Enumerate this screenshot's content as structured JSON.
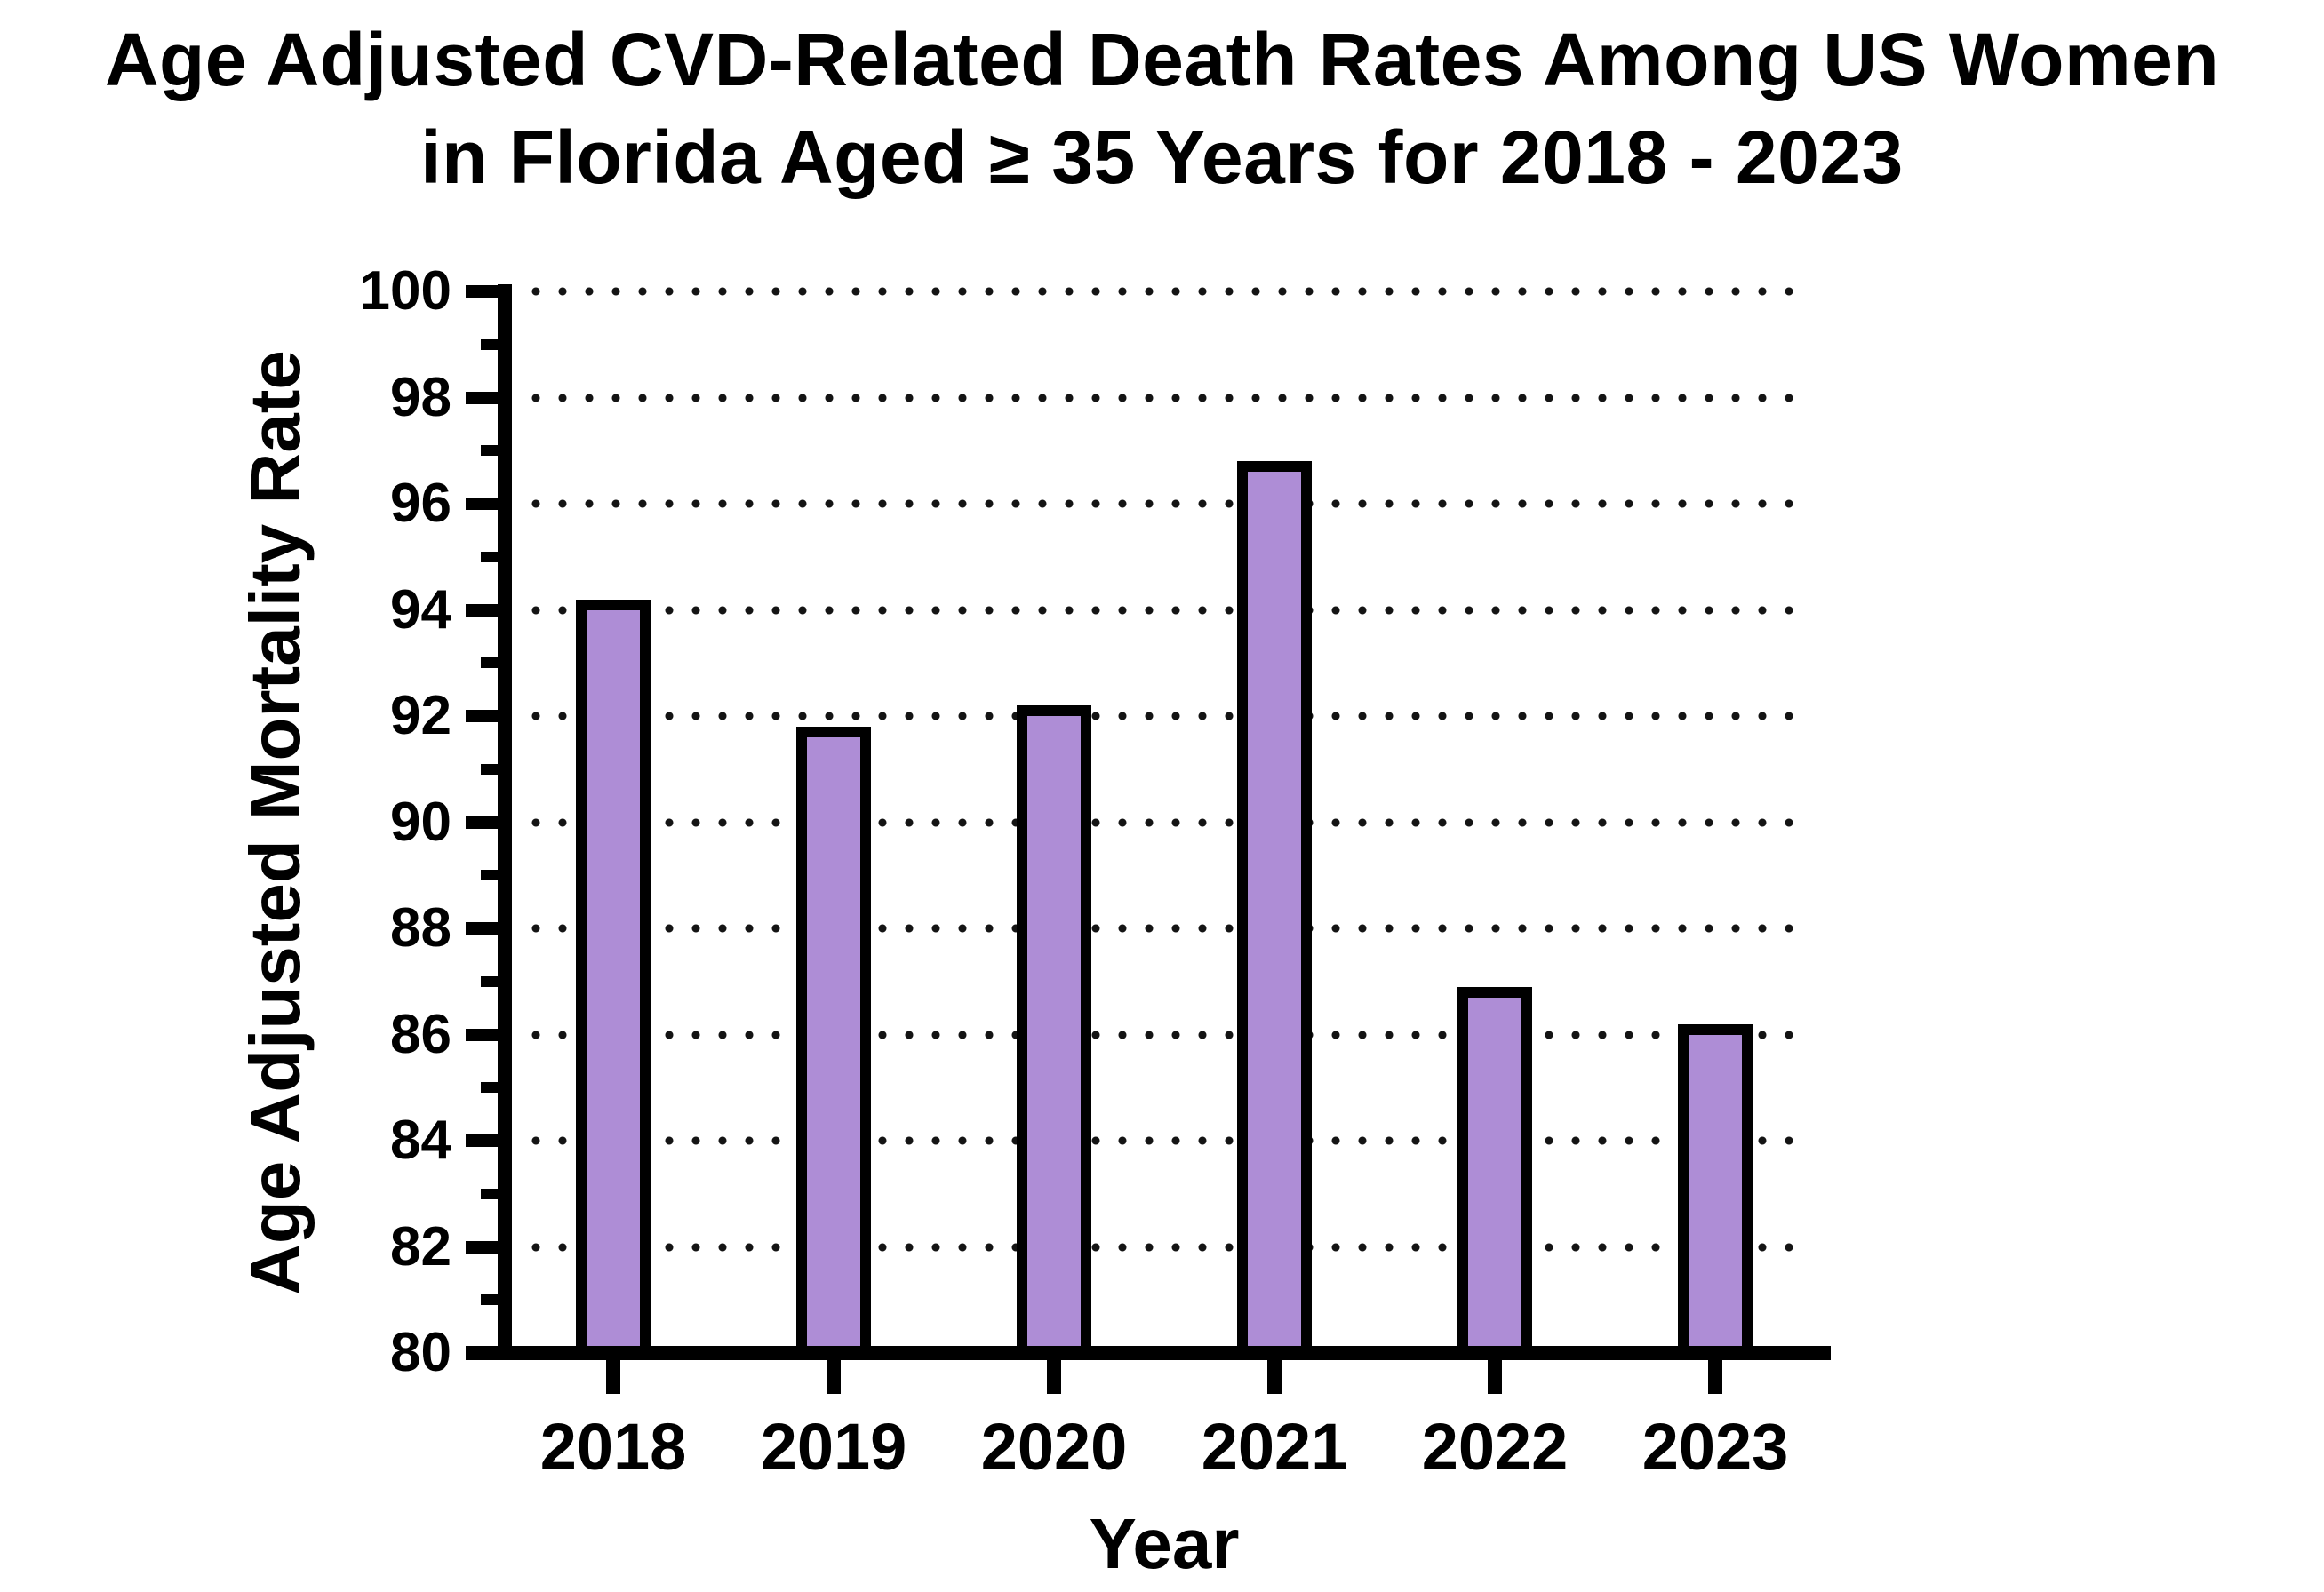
{
  "title": {
    "line1": "Age Adjusted CVD-Related Death Rates Among US Women",
    "line2": "in Florida Aged ≥ 35 Years for 2018 - 2023"
  },
  "axes": {
    "y_label": "Age Adjusted Mortality Rate",
    "x_label": "Year"
  },
  "chart_data": {
    "type": "bar",
    "title": "Age Adjusted CVD-Related Death Rates Among US Women in Florida Aged ≥ 35 Years for 2018 - 2023",
    "categories": [
      "2018",
      "2019",
      "2020",
      "2021",
      "2022",
      "2023"
    ],
    "values": [
      94.2,
      91.8,
      92.2,
      96.8,
      86.9,
      86.2
    ],
    "xlabel": "Year",
    "ylabel": "Age Adjusted Mortality Rate",
    "ylim": [
      80,
      100
    ],
    "y_major_tick_step": 2,
    "y_minor_tick_step": 1,
    "y_ticks": [
      100,
      98,
      96,
      94,
      92,
      90,
      88,
      86,
      84,
      82,
      80
    ],
    "grid": "horizontal dotted lines at major ticks",
    "legend": "none",
    "bar_fill_color": "#AE8DD6",
    "bar_border_color": "#000000",
    "axis_color": "#000000",
    "background_color": "#FFFFFF"
  }
}
